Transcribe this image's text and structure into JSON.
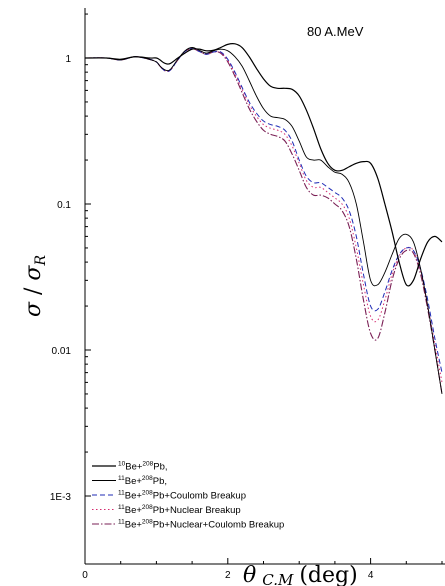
{
  "chart_data": {
    "type": "line",
    "annotation": "80 A.MeV",
    "ylabel_main": "σ",
    "ylabel_den": "σ",
    "ylabel_den_sub": "R",
    "xlabel_main": "θ",
    "xlabel_sub": "C.M",
    "xlabel_unit": "(deg)",
    "xlim": [
      0,
      5
    ],
    "ylim": [
      0.001,
      2.5
    ],
    "yscale": "log",
    "xticks": [
      {
        "value": 0,
        "label": "0"
      },
      {
        "value": 2,
        "label": "2"
      },
      {
        "value": 4,
        "label": "4"
      }
    ],
    "yticks": [
      {
        "value": 1,
        "label": "1"
      },
      {
        "value": 0.1,
        "label": "0.1"
      },
      {
        "value": 0.01,
        "label": "0.01"
      },
      {
        "value": 0.001,
        "label": "1E-3"
      }
    ],
    "legend_position": "bottom-left",
    "series": [
      {
        "name": "10Be+208Pb,",
        "legend": {
          "pre": "",
          "sup1": "10",
          "mid": "Be+",
          "sup2": "208",
          "post": "Pb,"
        },
        "color": "#000000",
        "width": 1.2,
        "dash": "",
        "x": [
          0,
          0.3,
          0.5,
          0.7,
          0.9,
          1.0,
          1.05,
          1.1,
          1.15,
          1.2,
          1.3,
          1.4,
          1.5,
          1.6,
          1.7,
          1.8,
          1.9,
          2.0,
          2.1,
          2.2,
          2.3,
          2.4,
          2.5,
          2.6,
          2.7,
          2.8,
          2.9,
          3.0,
          3.1,
          3.2,
          3.3,
          3.4,
          3.5,
          3.6,
          3.7,
          3.8,
          3.9,
          4.0,
          4.1,
          4.2,
          4.3,
          4.4,
          4.5,
          4.6,
          4.7,
          4.8,
          4.9,
          5.0
        ],
        "y": [
          1,
          1,
          0.98,
          1.02,
          1.0,
          1.0,
          0.97,
          0.93,
          0.91,
          0.92,
          1.0,
          1.08,
          1.15,
          1.15,
          1.12,
          1.13,
          1.18,
          1.24,
          1.25,
          1.18,
          1.02,
          0.85,
          0.72,
          0.64,
          0.62,
          0.62,
          0.61,
          0.55,
          0.44,
          0.33,
          0.24,
          0.19,
          0.17,
          0.17,
          0.18,
          0.19,
          0.195,
          0.19,
          0.15,
          0.1,
          0.065,
          0.04,
          0.028,
          0.03,
          0.042,
          0.055,
          0.06,
          0.055
        ]
      },
      {
        "name": "11Be+208Pb,",
        "legend": {
          "pre": "",
          "sup1": "11",
          "mid": "Be+",
          "sup2": "208",
          "post": "Pb,"
        },
        "color": "#000000",
        "width": 0.9,
        "dash": "",
        "x": [
          0,
          0.3,
          0.5,
          0.7,
          0.9,
          1.0,
          1.05,
          1.1,
          1.15,
          1.2,
          1.3,
          1.4,
          1.5,
          1.6,
          1.7,
          1.8,
          1.9,
          2.0,
          2.1,
          2.2,
          2.3,
          2.4,
          2.5,
          2.6,
          2.7,
          2.8,
          2.9,
          3.0,
          3.1,
          3.2,
          3.3,
          3.4,
          3.5,
          3.6,
          3.7,
          3.8,
          3.9,
          4.0,
          4.1,
          4.2,
          4.3,
          4.4,
          4.5,
          4.6,
          4.7,
          4.8,
          4.9,
          5.0
        ],
        "y": [
          1,
          1,
          0.97,
          1.02,
          0.98,
          0.94,
          0.88,
          0.84,
          0.82,
          0.84,
          0.98,
          1.12,
          1.18,
          1.13,
          1.08,
          1.12,
          1.15,
          1.12,
          1.02,
          0.88,
          0.7,
          0.55,
          0.45,
          0.4,
          0.39,
          0.38,
          0.34,
          0.27,
          0.21,
          0.2,
          0.2,
          0.18,
          0.165,
          0.16,
          0.14,
          0.1,
          0.055,
          0.03,
          0.028,
          0.034,
          0.045,
          0.058,
          0.062,
          0.055,
          0.036,
          0.02,
          0.01,
          0.005
        ]
      },
      {
        "name": "11Be+208Pb+Coulomb Breakup",
        "legend": {
          "pre": "",
          "sup1": "11",
          "mid": "Be+",
          "sup2": "208",
          "post": "Pb+Coulomb Breakup"
        },
        "color": "#1f2bb5",
        "width": 1.0,
        "dash": "5,3",
        "x": [
          0,
          0.3,
          0.5,
          0.7,
          0.9,
          1.0,
          1.05,
          1.1,
          1.15,
          1.2,
          1.3,
          1.4,
          1.5,
          1.6,
          1.7,
          1.8,
          1.9,
          2.0,
          2.1,
          2.2,
          2.3,
          2.4,
          2.5,
          2.6,
          2.7,
          2.8,
          2.9,
          3.0,
          3.1,
          3.2,
          3.3,
          3.4,
          3.5,
          3.6,
          3.7,
          3.8,
          3.9,
          4.0,
          4.1,
          4.2,
          4.3,
          4.4,
          4.5,
          4.6,
          4.7,
          4.8,
          4.9,
          5.0
        ],
        "y": [
          1,
          1,
          0.97,
          1.02,
          0.98,
          0.94,
          0.88,
          0.83,
          0.81,
          0.83,
          0.97,
          1.11,
          1.16,
          1.11,
          1.06,
          1.1,
          1.1,
          0.98,
          0.8,
          0.63,
          0.5,
          0.42,
          0.37,
          0.35,
          0.34,
          0.32,
          0.27,
          0.2,
          0.155,
          0.14,
          0.14,
          0.13,
          0.12,
          0.11,
          0.09,
          0.06,
          0.033,
          0.02,
          0.019,
          0.025,
          0.035,
          0.045,
          0.05,
          0.048,
          0.036,
          0.022,
          0.012,
          0.007
        ]
      },
      {
        "name": "11Be+208Pb+Nuclear Breakup",
        "legend": {
          "pre": "",
          "sup1": "11",
          "mid": "Be+",
          "sup2": "208",
          "post": "Pb+Nuclear Breakup"
        },
        "color": "#d42a6e",
        "width": 1.0,
        "dash": "1.5,2.5",
        "x": [
          0,
          0.3,
          0.5,
          0.7,
          0.9,
          1.0,
          1.05,
          1.1,
          1.15,
          1.2,
          1.3,
          1.4,
          1.5,
          1.6,
          1.7,
          1.8,
          1.9,
          2.0,
          2.1,
          2.2,
          2.3,
          2.4,
          2.5,
          2.6,
          2.7,
          2.8,
          2.9,
          3.0,
          3.1,
          3.2,
          3.3,
          3.4,
          3.5,
          3.6,
          3.7,
          3.8,
          3.9,
          4.0,
          4.1,
          4.2,
          4.3,
          4.4,
          4.5,
          4.6,
          4.7,
          4.8,
          4.9,
          5.0
        ],
        "y": [
          1,
          1,
          0.97,
          1.02,
          0.98,
          0.94,
          0.88,
          0.83,
          0.81,
          0.83,
          0.97,
          1.11,
          1.16,
          1.11,
          1.06,
          1.1,
          1.09,
          0.96,
          0.78,
          0.61,
          0.48,
          0.4,
          0.35,
          0.33,
          0.32,
          0.3,
          0.25,
          0.19,
          0.145,
          0.13,
          0.13,
          0.12,
          0.11,
          0.1,
          0.08,
          0.05,
          0.028,
          0.017,
          0.016,
          0.022,
          0.033,
          0.044,
          0.05,
          0.048,
          0.035,
          0.02,
          0.011,
          0.006
        ]
      },
      {
        "name": "11Be+208Pb+Nuclear+Coulomb Breakup",
        "legend": {
          "pre": "",
          "sup1": "11",
          "mid": "Be+",
          "sup2": "208",
          "post": "Pb+Nuclear+Coulomb Breakup"
        },
        "color": "#7a1f55",
        "width": 1.1,
        "dash": "7,2,1.5,2",
        "x": [
          0,
          0.3,
          0.5,
          0.7,
          0.9,
          1.0,
          1.05,
          1.1,
          1.15,
          1.2,
          1.3,
          1.4,
          1.5,
          1.6,
          1.7,
          1.8,
          1.9,
          2.0,
          2.1,
          2.2,
          2.3,
          2.4,
          2.5,
          2.6,
          2.7,
          2.8,
          2.9,
          3.0,
          3.1,
          3.2,
          3.3,
          3.4,
          3.5,
          3.6,
          3.7,
          3.8,
          3.9,
          4.0,
          4.1,
          4.2,
          4.3,
          4.4,
          4.5,
          4.6,
          4.7,
          4.8,
          4.9,
          5.0
        ],
        "y": [
          1,
          1,
          0.97,
          1.02,
          0.98,
          0.94,
          0.88,
          0.83,
          0.81,
          0.83,
          0.97,
          1.11,
          1.16,
          1.11,
          1.06,
          1.1,
          1.08,
          0.94,
          0.75,
          0.58,
          0.45,
          0.37,
          0.32,
          0.3,
          0.29,
          0.27,
          0.22,
          0.17,
          0.13,
          0.115,
          0.115,
          0.11,
          0.1,
          0.09,
          0.07,
          0.042,
          0.022,
          0.013,
          0.012,
          0.018,
          0.03,
          0.042,
          0.048,
          0.046,
          0.033,
          0.019,
          0.01,
          0.005
        ]
      }
    ]
  }
}
